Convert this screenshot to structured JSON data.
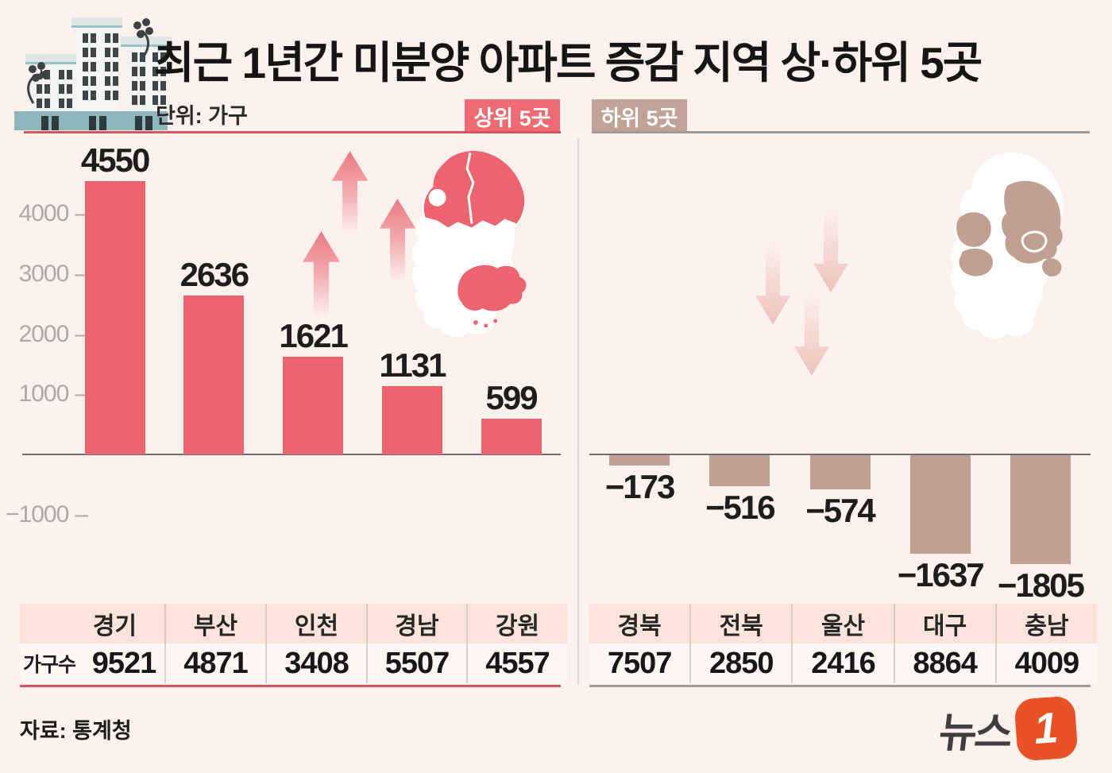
{
  "header": {
    "title": "최근 1년간 미분양 아파트 증감 지역 상·하위 5곳",
    "unit_label": "단위: 가구",
    "badge_top": "상위 5곳",
    "badge_bottom": "하위 5곳"
  },
  "table": {
    "row_label": "가구수"
  },
  "footer": {
    "source_label": "자료: 통계청",
    "logo_text": "뉴스",
    "logo_one": "1"
  },
  "colors": {
    "background": "#fdf1ee",
    "bar_up": "#ec6470",
    "bar_down": "#c2a094",
    "badge_top_bg": "#ee6b74",
    "badge_bottom_bg": "#c0a296",
    "accent_line_left": "#d4545f",
    "accent_line_right": "#9c9c9c",
    "map_highlight_top": "#ec6470",
    "map_highlight_bottom": "#bfa092",
    "table_header_bg": "#fce4da",
    "axis_text": "#b2a6a6",
    "logo_orange": "#e85325"
  },
  "chart_data": [
    {
      "type": "bar",
      "title": "상위 5곳",
      "direction": "up",
      "unit": "가구",
      "categories": [
        "경기",
        "부산",
        "인천",
        "경남",
        "강원"
      ],
      "values": [
        4550,
        2636,
        1621,
        1131,
        599
      ],
      "value_labels": [
        "4550",
        "2636",
        "1621",
        "1131",
        "599"
      ],
      "households": [
        9521,
        4871,
        3408,
        5507,
        4557
      ],
      "yticks": [
        4000,
        3000,
        2000,
        1000,
        -1000
      ],
      "ylim": [
        -1300,
        4900
      ],
      "grid": false,
      "legend": false
    },
    {
      "type": "bar",
      "title": "하위 5곳",
      "direction": "down",
      "unit": "가구",
      "categories": [
        "경북",
        "전북",
        "울산",
        "대구",
        "충남"
      ],
      "values": [
        -173,
        -516,
        -574,
        -1637,
        -1805
      ],
      "value_labels": [
        "−173",
        "−516",
        "−574",
        "−1637",
        "−1805"
      ],
      "households": [
        7507,
        2850,
        2416,
        8864,
        4009
      ],
      "yticks": [],
      "ylim": [
        -1300,
        4900
      ],
      "grid": false,
      "legend": false
    }
  ]
}
